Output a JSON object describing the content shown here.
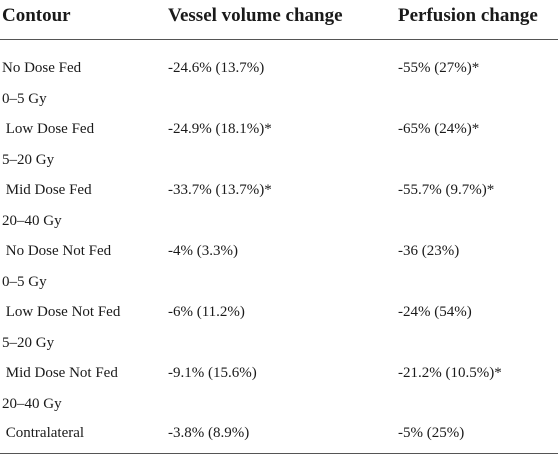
{
  "header": {
    "col1": "Contour",
    "col2": "Vessel volume change",
    "col3": "Perfusion change"
  },
  "rows": [
    {
      "contour_line1": "No Dose Fed",
      "contour_line2": "0–5 Gy",
      "vessel": "-24.6% (13.7%)",
      "perfusion": "-55% (27%)*"
    },
    {
      "contour_line1": " Low Dose Fed",
      "contour_line2": "5–20 Gy",
      "vessel": "-24.9% (18.1%)*",
      "perfusion": "-65% (24%)*"
    },
    {
      "contour_line1": " Mid Dose Fed",
      "contour_line2": "20–40 Gy",
      "vessel": "-33.7% (13.7%)*",
      "perfusion": "-55.7% (9.7%)*"
    },
    {
      "contour_line1": " No Dose Not Fed",
      "contour_line2": "0–5 Gy",
      "vessel": "-4% (3.3%)",
      "perfusion": "-36 (23%)"
    },
    {
      "contour_line1": " Low Dose Not Fed",
      "contour_line2": "5–20 Gy",
      "vessel": "-6% (11.2%)",
      "perfusion": "-24% (54%)"
    },
    {
      "contour_line1": " Mid Dose Not Fed",
      "contour_line2": "20–40 Gy",
      "vessel": "-9.1% (15.6%)",
      "perfusion": "-21.2% (10.5%)*"
    },
    {
      "contour_line1": " Contralateral",
      "contour_line2": "",
      "vessel": "-3.8% (8.9%)",
      "perfusion": "-5% (25%)"
    }
  ]
}
